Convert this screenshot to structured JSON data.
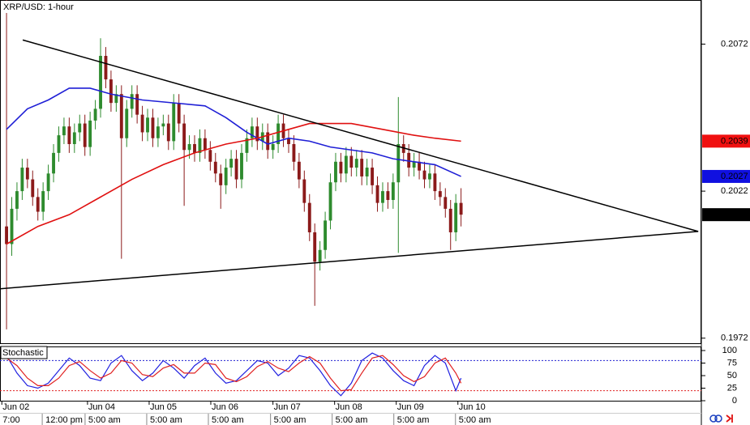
{
  "chart_data": {
    "type": "candlestick",
    "title": "XRP/USD: 1-hour",
    "xlim": [
      -1.25,
      133
    ],
    "ylim": [
      0.197,
      0.2087
    ],
    "yticks": [
      0.1972,
      0.2022,
      0.2072
    ],
    "xticks": [
      {
        "value": -0.9,
        "label": "Jun 02"
      },
      {
        "value": 15.5,
        "label": "Jun 04"
      },
      {
        "value": 27.3,
        "label": "Jun 05"
      },
      {
        "value": 39.1,
        "label": "Jun 06"
      },
      {
        "value": 51.0,
        "label": "Jun 07"
      },
      {
        "value": 62.8,
        "label": "Jun 08"
      },
      {
        "value": 74.6,
        "label": "Jun 09"
      },
      {
        "value": 86.4,
        "label": "Jun 10"
      }
    ],
    "xticks_time": [
      {
        "value": -0.9,
        "label": "7:00"
      },
      {
        "value": 7.3,
        "label": "12:00 pm"
      },
      {
        "value": 15.5,
        "label": "5:00 am"
      },
      {
        "value": 27.3,
        "label": "5:00 am"
      },
      {
        "value": 39.1,
        "label": "5:00 am"
      },
      {
        "value": 51.0,
        "label": "5:00 am"
      },
      {
        "value": 62.8,
        "label": "5:00 am"
      },
      {
        "value": 74.6,
        "label": "5:00 am"
      },
      {
        "value": 86.4,
        "label": "5:00 am"
      }
    ],
    "up_color": "#2e8b2e",
    "down_color": "#8b1a1a",
    "open": [
      0.201,
      0.2004,
      0.2016,
      0.2022,
      0.203,
      0.2026,
      0.202,
      0.2015,
      0.2022,
      0.2028,
      0.2035,
      0.2041,
      0.2044,
      0.2038,
      0.2042,
      0.2045,
      0.2037,
      0.2046,
      0.205,
      0.2068,
      0.206,
      0.2052,
      0.2055,
      0.204,
      0.205,
      0.2055,
      0.2048,
      0.2042,
      0.2047,
      0.204,
      0.2044,
      0.2045,
      0.2039,
      0.2052,
      0.2045,
      0.2036,
      0.2038,
      0.2035,
      0.204,
      0.2036,
      0.2032,
      0.2028,
      0.2024,
      0.203,
      0.2033,
      0.2026,
      0.2035,
      0.204,
      0.2044,
      0.2039,
      0.2042,
      0.2036,
      0.2038,
      0.2045,
      0.204,
      0.2038,
      0.2032,
      0.2026,
      0.2018,
      0.2008,
      0.1998,
      0.2002,
      0.2012,
      0.2025,
      0.2032,
      0.2028,
      0.2034,
      0.203,
      0.2033,
      0.2027,
      0.203,
      0.2024,
      0.2018,
      0.2022,
      0.2019,
      0.2025,
      0.2038,
      0.2035,
      0.203,
      0.2032,
      0.2029,
      0.2026,
      0.2028,
      0.2022,
      0.202,
      0.2016,
      0.2008,
      0.2018
    ],
    "high": [
      0.2087,
      0.202,
      0.2025,
      0.2033,
      0.2033,
      0.2029,
      0.2023,
      0.2025,
      0.2031,
      0.2038,
      0.2044,
      0.2047,
      0.2047,
      0.2045,
      0.2048,
      0.2048,
      0.2049,
      0.2053,
      0.2074,
      0.2071,
      0.2063,
      0.2058,
      0.2058,
      0.2053,
      0.2058,
      0.2058,
      0.2051,
      0.205,
      0.205,
      0.2047,
      0.2048,
      0.2048,
      0.2055,
      0.2055,
      0.2048,
      0.2041,
      0.2041,
      0.2043,
      0.2043,
      0.2039,
      0.2035,
      0.2031,
      0.2033,
      0.2036,
      0.2036,
      0.2038,
      0.2043,
      0.2047,
      0.2047,
      0.2045,
      0.2045,
      0.2041,
      0.2048,
      0.2048,
      0.2043,
      0.2041,
      0.2035,
      0.2029,
      0.2021,
      0.2011,
      0.2005,
      0.2015,
      0.2028,
      0.2035,
      0.2035,
      0.2037,
      0.2037,
      0.2036,
      0.2036,
      0.2033,
      0.2033,
      0.2027,
      0.2025,
      0.2025,
      0.2028,
      0.2054,
      0.2041,
      0.2038,
      0.2035,
      0.2035,
      0.2032,
      0.2031,
      0.2031,
      0.2025,
      0.2023,
      0.2019,
      0.2021,
      0.2023
    ],
    "low": [
      0.1975,
      0.2,
      0.2012,
      0.2019,
      0.2023,
      0.2017,
      0.2012,
      0.2012,
      0.2019,
      0.2025,
      0.2032,
      0.2038,
      0.2035,
      0.2035,
      0.2039,
      0.2034,
      0.2034,
      0.2043,
      0.2047,
      0.2057,
      0.2049,
      0.2049,
      0.1999,
      0.2037,
      0.2047,
      0.2045,
      0.2039,
      0.2039,
      0.2037,
      0.2037,
      0.2041,
      0.2036,
      0.2036,
      0.2042,
      0.2017,
      0.2033,
      0.2032,
      0.2032,
      0.2033,
      0.2029,
      0.2025,
      0.2016,
      0.2021,
      0.2027,
      0.2023,
      0.2023,
      0.2032,
      0.2037,
      0.2036,
      0.2036,
      0.2033,
      0.2033,
      0.2035,
      0.2037,
      0.2035,
      0.2029,
      0.2023,
      0.2015,
      0.2005,
      0.1983,
      0.1995,
      0.1999,
      0.2009,
      0.2022,
      0.2025,
      0.2025,
      0.2027,
      0.2027,
      0.2024,
      0.2024,
      0.2021,
      0.2015,
      0.2015,
      0.2016,
      0.2016,
      0.2001,
      0.2032,
      0.2027,
      0.2027,
      0.2026,
      0.2023,
      0.2023,
      0.2019,
      0.2017,
      0.2013,
      0.2002,
      0.2005,
      0.201
    ],
    "close": [
      0.2004,
      0.2016,
      0.2022,
      0.203,
      0.2026,
      0.202,
      0.2015,
      0.2022,
      0.2028,
      0.2035,
      0.2041,
      0.2044,
      0.2038,
      0.2042,
      0.2045,
      0.2037,
      0.2046,
      0.205,
      0.2068,
      0.206,
      0.2052,
      0.2055,
      0.204,
      0.205,
      0.2055,
      0.2048,
      0.2042,
      0.2047,
      0.204,
      0.2044,
      0.2045,
      0.2039,
      0.2052,
      0.2045,
      0.2036,
      0.2038,
      0.2035,
      0.204,
      0.2036,
      0.2032,
      0.2028,
      0.2024,
      0.203,
      0.2033,
      0.2026,
      0.2035,
      0.204,
      0.2044,
      0.2039,
      0.2042,
      0.2036,
      0.2038,
      0.2045,
      0.204,
      0.2038,
      0.2032,
      0.2026,
      0.2018,
      0.2008,
      0.1998,
      0.2002,
      0.2012,
      0.2025,
      0.2032,
      0.2028,
      0.2034,
      0.203,
      0.2033,
      0.2027,
      0.203,
      0.2024,
      0.2018,
      0.2022,
      0.2019,
      0.2025,
      0.2038,
      0.2035,
      0.203,
      0.2032,
      0.2029,
      0.2026,
      0.2028,
      0.2022,
      0.202,
      0.2016,
      0.2008,
      0.2018,
      0.2014
    ],
    "overlays": [
      {
        "color": "#1f1fd6",
        "x": [
          0,
          4,
          8,
          12,
          16,
          20,
          26,
          32,
          38,
          42,
          46,
          50,
          54,
          58,
          62,
          66,
          70,
          74,
          78,
          82,
          87
        ],
        "values": [
          0.2043,
          0.205,
          0.2053,
          0.2057,
          0.2057,
          0.2055,
          0.2053,
          0.2052,
          0.2051,
          0.2047,
          0.2042,
          0.2038,
          0.204,
          0.2039,
          0.2037,
          0.2036,
          0.2035,
          0.2033,
          0.2032,
          0.2031,
          0.2027
        ]
      },
      {
        "color": "#e01010",
        "x": [
          0,
          6,
          12,
          18,
          24,
          30,
          36,
          42,
          48,
          54,
          58,
          62,
          66,
          72,
          78,
          82,
          87
        ],
        "values": [
          0.2004,
          0.201,
          0.2014,
          0.202,
          0.2026,
          0.2031,
          0.2035,
          0.2038,
          0.204,
          0.2043,
          0.2045,
          0.2045,
          0.2045,
          0.2043,
          0.2041,
          0.204,
          0.2039
        ]
      }
    ],
    "trendlines": [
      {
        "color": "#000000",
        "x": [
          3.1,
          132.4
        ],
        "values": [
          0.20734,
          0.20083
        ]
      },
      {
        "color": "#000000",
        "x": [
          -1.25,
          132.4
        ],
        "values": [
          0.19888,
          0.20083
        ]
      }
    ],
    "price_markers": [
      {
        "value": 0.2039,
        "color": "#f01010"
      },
      {
        "value": 0.2027,
        "color": "#1010e0"
      },
      {
        "value": 0.2014,
        "color": "#000000"
      }
    ],
    "indicator": {
      "type": "line",
      "title": "Stochastic",
      "ylim": [
        0,
        100
      ],
      "yticks": [
        0,
        25,
        50,
        75,
        100
      ],
      "levels": [
        {
          "value": 80,
          "color": "#2020d0"
        },
        {
          "value": 20,
          "color": "#e02020"
        }
      ],
      "x": [
        0,
        2,
        4,
        6,
        8,
        10,
        12,
        14,
        16,
        18,
        20,
        22,
        24,
        26,
        28,
        30,
        32,
        34,
        36,
        38,
        40,
        42,
        44,
        46,
        48,
        50,
        52,
        54,
        56,
        58,
        60,
        62,
        64,
        66,
        68,
        70,
        72,
        74,
        76,
        78,
        80,
        82,
        84,
        86,
        87
      ],
      "series": [
        {
          "color": "#2020e0",
          "values": [
            90,
            55,
            30,
            25,
            35,
            60,
            85,
            70,
            45,
            40,
            75,
            90,
            60,
            40,
            55,
            80,
            65,
            45,
            70,
            85,
            55,
            35,
            40,
            60,
            80,
            75,
            50,
            65,
            90,
            85,
            60,
            30,
            10,
            35,
            80,
            95,
            85,
            60,
            40,
            30,
            70,
            90,
            75,
            20,
            45
          ]
        },
        {
          "color": "#e02020",
          "values": [
            85,
            70,
            45,
            30,
            30,
            45,
            70,
            78,
            60,
            45,
            55,
            80,
            75,
            52,
            48,
            65,
            72,
            55,
            55,
            75,
            72,
            45,
            38,
            48,
            68,
            78,
            65,
            58,
            75,
            88,
            75,
            45,
            20,
            22,
            55,
            85,
            90,
            72,
            50,
            38,
            48,
            75,
            85,
            55,
            35
          ]
        }
      ]
    }
  }
}
